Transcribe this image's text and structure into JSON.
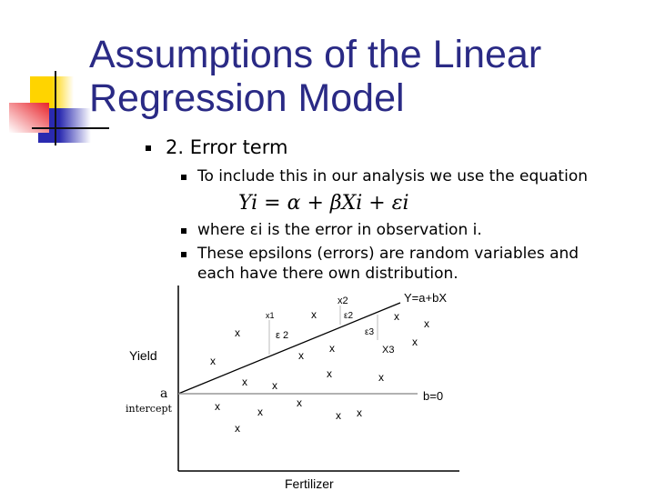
{
  "title": {
    "line1": "Assumptions of the Linear",
    "line2": "Regression Model"
  },
  "bullets": {
    "level1": "2. Error term",
    "level2": [
      "To include this in our analysis we use the equation",
      "where εi is the error in observation i.",
      "These epsilons (errors) are random variables and",
      "each have there own distribution."
    ],
    "equation": "Yi = α + βXi + εi"
  },
  "diagram": {
    "y_label": "Yield",
    "x_label": "Fertilizer",
    "intercept_a": "a",
    "intercept_label": "intercept",
    "regression_label": "Y=a+bX",
    "flat_label": "b=0",
    "point_mark": "x",
    "labels": {
      "x1": "x1",
      "x2": "x2",
      "x3": "X3",
      "e2a": "ε 2",
      "e2b": "ε2",
      "e3": "ε3"
    }
  },
  "colors": {
    "title": "#2a2a85",
    "logo_yellow": "#ffd400",
    "logo_red": "#e8232a",
    "logo_blue": "#2a2ab0"
  }
}
